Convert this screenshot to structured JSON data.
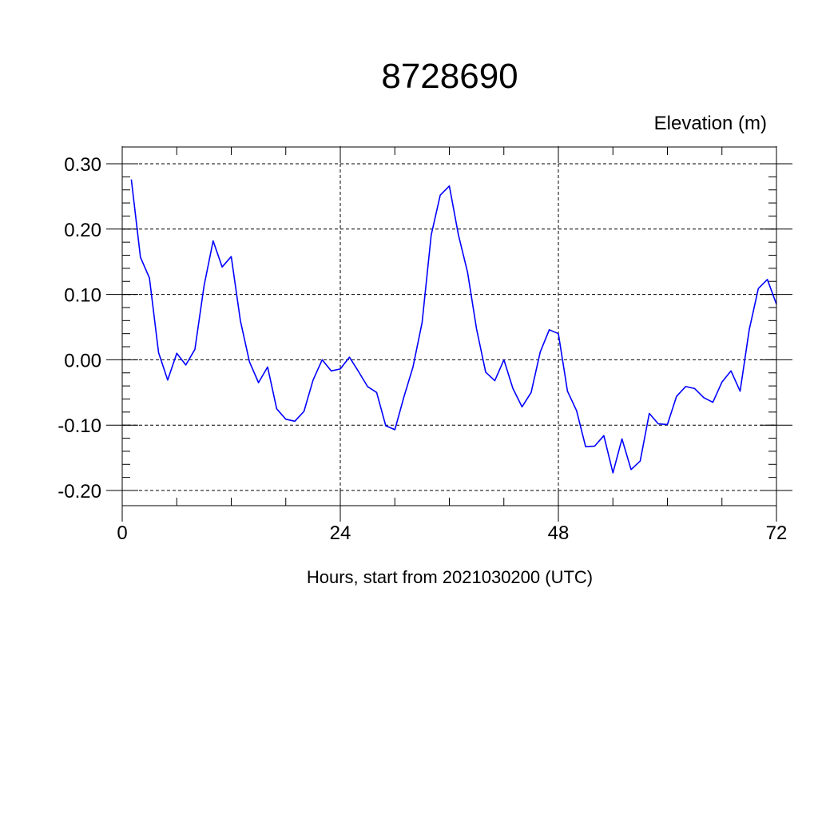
{
  "chart_data": {
    "type": "line",
    "title": "8728690",
    "ylabel": "Elevation (m)",
    "xlabel": "Hours, start from 2021030200 (UTC)",
    "xlim": [
      0,
      72
    ],
    "ylim": [
      -0.2,
      0.3
    ],
    "xticks": [
      0,
      24,
      48,
      72
    ],
    "xtick_labels": [
      "0",
      "24",
      "48",
      "72"
    ],
    "yticks": [
      -0.2,
      -0.1,
      0.0,
      0.1,
      0.2,
      0.3
    ],
    "ytick_labels": [
      "-0.20",
      "-0.10",
      "0.00",
      "0.10",
      "0.20",
      "0.30"
    ],
    "grid": true,
    "line_color": "#0000ff",
    "series": [
      {
        "x": [
          1,
          2,
          3,
          4,
          5,
          6,
          7,
          8,
          9,
          10,
          11,
          12,
          13,
          14,
          15,
          16,
          17,
          18,
          19,
          20,
          21,
          22,
          23,
          24,
          25,
          26,
          27,
          28,
          29,
          30,
          31,
          32,
          33,
          34,
          35,
          36,
          37,
          38,
          39,
          40,
          41,
          42,
          43,
          44,
          45,
          46,
          47,
          48,
          49,
          50,
          51,
          52,
          53,
          54,
          55,
          56,
          57,
          58,
          59,
          60,
          61,
          62,
          63,
          64,
          65,
          66,
          67,
          68,
          69,
          70,
          71,
          72
        ],
        "values": [
          0.276,
          0.157,
          0.125,
          0.011,
          -0.031,
          0.01,
          -0.008,
          0.016,
          0.113,
          0.182,
          0.142,
          0.158,
          0.06,
          -0.003,
          -0.035,
          -0.011,
          -0.075,
          -0.091,
          -0.094,
          -0.079,
          -0.031,
          0.0,
          -0.017,
          -0.014,
          0.004,
          -0.018,
          -0.041,
          -0.05,
          -0.101,
          -0.107,
          -0.057,
          -0.011,
          0.057,
          0.191,
          0.252,
          0.266,
          0.191,
          0.134,
          0.047,
          -0.019,
          -0.032,
          0.0,
          -0.044,
          -0.072,
          -0.05,
          0.012,
          0.046,
          0.04,
          -0.048,
          -0.078,
          -0.133,
          -0.132,
          -0.116,
          -0.173,
          -0.121,
          -0.168,
          -0.155,
          -0.082,
          -0.098,
          -0.099,
          -0.056,
          -0.041,
          -0.044,
          -0.058,
          -0.065,
          -0.034,
          -0.017,
          -0.048,
          0.046,
          0.109,
          0.123,
          0.085
        ]
      }
    ]
  }
}
